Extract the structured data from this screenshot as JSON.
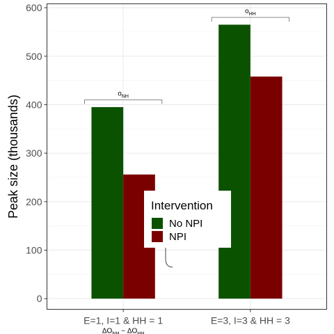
{
  "chart_data": {
    "type": "bar",
    "title": "",
    "xlabel": "",
    "ylabel": "Peak size (thousands)",
    "ylim": [
      -22,
      608
    ],
    "yticks": [
      0,
      100,
      200,
      300,
      400,
      500,
      600
    ],
    "categories": [
      "E=1, I=1 & HH = 1",
      "E=3, I=3 & HH = 3"
    ],
    "series": [
      {
        "name": "No NPI",
        "color": "#0b5200",
        "values": [
          395,
          565
        ]
      },
      {
        "name": "NPI",
        "color": "#7a0000",
        "values": [
          256,
          458
        ]
      }
    ],
    "grid": true,
    "legend": {
      "title": "Intervention",
      "position": "center"
    },
    "annotations": [
      {
        "category": 0,
        "main": "o",
        "sub": "NH",
        "y": 410
      },
      {
        "category": 1,
        "main": "o",
        "sub": "HH",
        "y": 580
      },
      {
        "category": 0,
        "main": "ΔO",
        "sub": "NH",
        "joiner": " − ",
        "main2": "ΔO",
        "sub2": "HH",
        "position": "below-axis"
      },
      {
        "main": "ΔO",
        "sub": "NH",
        "position": "brace",
        "yfrom": 65,
        "yto": 220
      }
    ]
  }
}
